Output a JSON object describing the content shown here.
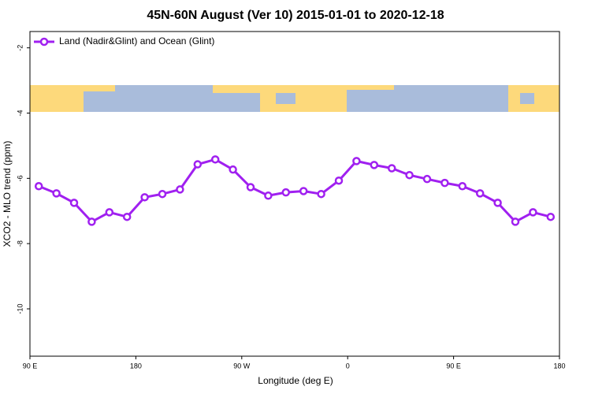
{
  "chart_data": {
    "type": "line",
    "title": "45N-60N August (Ver 10)   2015-01-01 to 2020-12-18",
    "x_label": "Longitude (deg E)",
    "y_label": "XCO2 - MLO trend (ppm)",
    "x": [
      97.5,
      112.5,
      127.5,
      142.5,
      157.5,
      172.5,
      187.5,
      202.5,
      217.5,
      232.5,
      247.5,
      262.5,
      277.5,
      292.5,
      307.5,
      322.5,
      337.5,
      352.5,
      367.5,
      382.5,
      397.5,
      412.5,
      427.5,
      442.5,
      457.5,
      472.5,
      487.5,
      502.5,
      517.5,
      532.5
    ],
    "series": [
      {
        "name": "Land (Nadir&Glint) and Ocean (Glint)",
        "color": "#a020f0",
        "values": [
          -6.24,
          -6.46,
          -6.75,
          -7.33,
          -7.04,
          -7.18,
          -6.58,
          -6.48,
          -6.34,
          -5.57,
          -5.42,
          -5.73,
          -6.27,
          -6.53,
          -6.43,
          -6.39,
          -6.48,
          -6.07,
          -5.47,
          -5.59,
          -5.69,
          -5.9,
          -6.02,
          -6.14,
          -6.24,
          -6.46,
          -6.75,
          -7.33,
          -7.04,
          -7.18
        ]
      }
    ],
    "xlim": [
      90,
      540
    ],
    "xticks": [
      {
        "value": 90,
        "label": "90 E"
      },
      {
        "value": 180,
        "label": "180"
      },
      {
        "value": 270,
        "label": "90 W"
      },
      {
        "value": 360,
        "label": "0"
      },
      {
        "value": 450,
        "label": "90 E"
      },
      {
        "value": 540,
        "label": "180"
      }
    ],
    "ylim": [
      -11.45,
      -1.5
    ],
    "yticks": [
      -2,
      -4,
      -6,
      -8,
      -10
    ],
    "legend": "top-left"
  }
}
